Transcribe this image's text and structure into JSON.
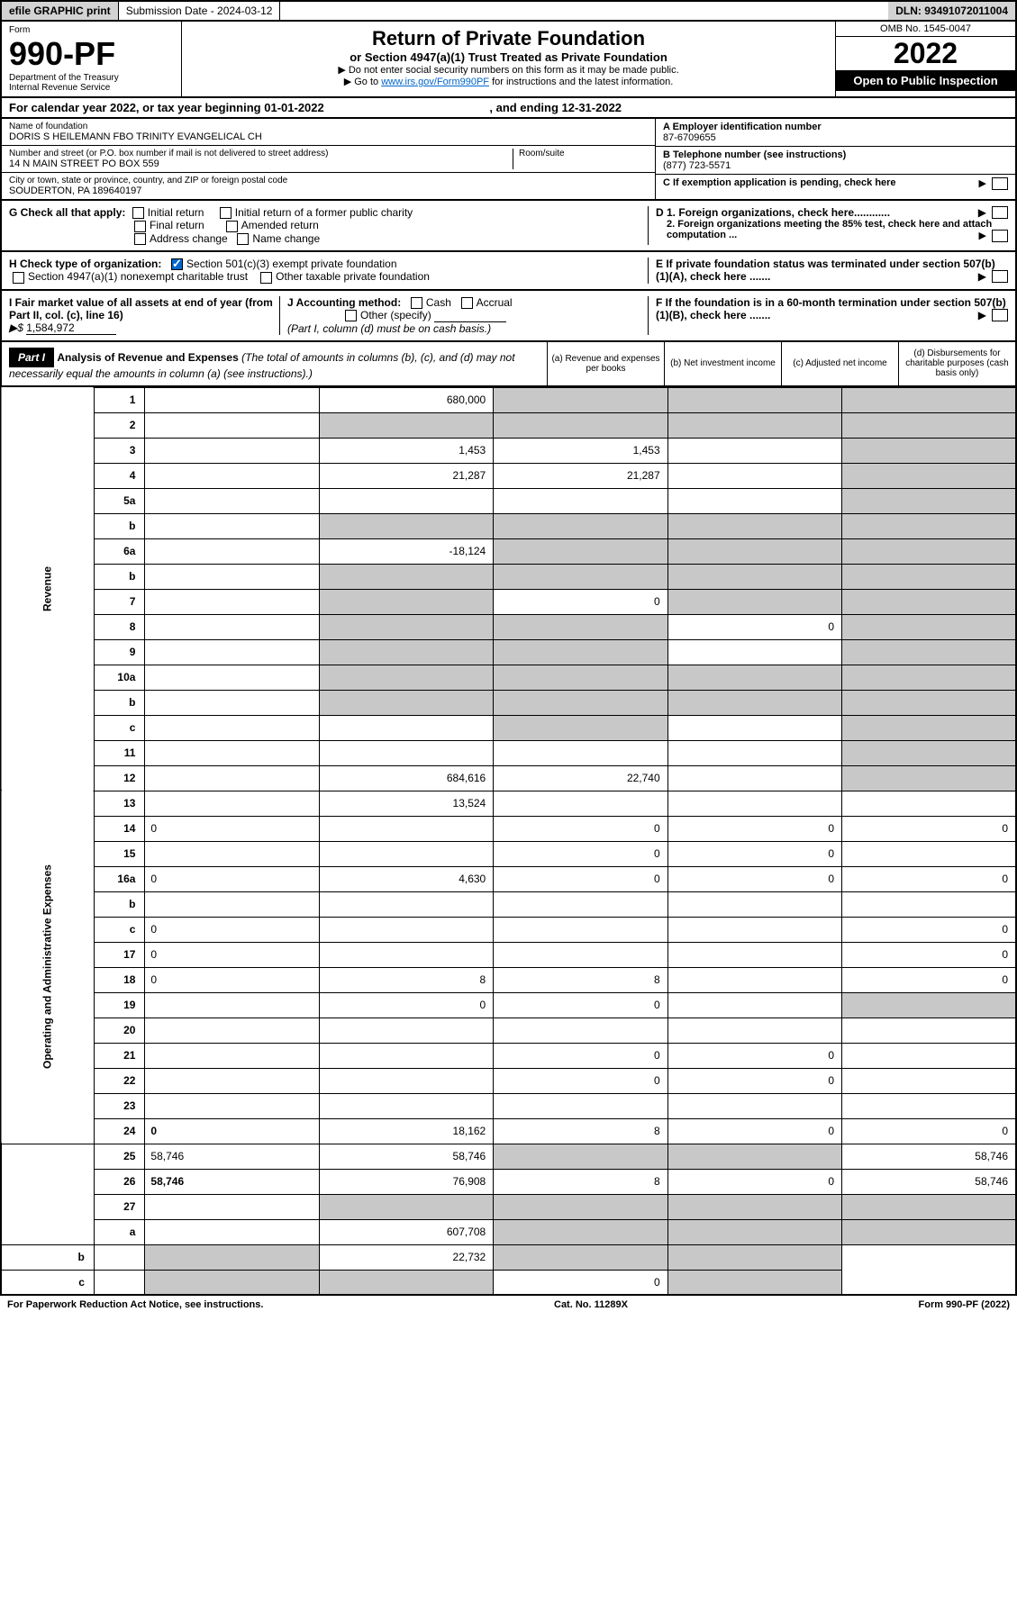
{
  "top_bar": {
    "efile": "efile GRAPHIC print",
    "sub_label": "Submission Date - 2024-03-12",
    "dln": "DLN: 93491072011004"
  },
  "header": {
    "form_label": "Form",
    "form_number": "990-PF",
    "dept": "Department of the Treasury",
    "irs": "Internal Revenue Service",
    "title": "Return of Private Foundation",
    "subtitle": "or Section 4947(a)(1) Trust Treated as Private Foundation",
    "instr1": "▶ Do not enter social security numbers on this form as it may be made public.",
    "instr2_pre": "▶ Go to ",
    "instr2_link": "www.irs.gov/Form990PF",
    "instr2_post": " for instructions and the latest information.",
    "omb": "OMB No. 1545-0047",
    "year": "2022",
    "open": "Open to Public Inspection"
  },
  "calendar": {
    "text_pre": "For calendar year 2022, or tax year beginning ",
    "begin": "01-01-2022",
    "mid": " , and ending ",
    "end": "12-31-2022"
  },
  "entity": {
    "name_label": "Name of foundation",
    "name": "DORIS S HEILEMANN FBO TRINITY EVANGELICAL CH",
    "addr_label": "Number and street (or P.O. box number if mail is not delivered to street address)",
    "addr": "14 N MAIN STREET PO BOX 559",
    "room_label": "Room/suite",
    "city_label": "City or town, state or province, country, and ZIP or foreign postal code",
    "city": "SOUDERTON, PA  189640197",
    "ein_label": "A Employer identification number",
    "ein": "87-6709655",
    "phone_label": "B Telephone number (see instructions)",
    "phone": "(877) 723-5571",
    "c_label": "C If exemption application is pending, check here"
  },
  "checks": {
    "g_label": "G Check all that apply:",
    "initial": "Initial return",
    "initial_former": "Initial return of a former public charity",
    "final": "Final return",
    "amended": "Amended return",
    "addr_change": "Address change",
    "name_change": "Name change",
    "h_label": "H Check type of organization:",
    "h_501c3": "Section 501(c)(3) exempt private foundation",
    "h_4947": "Section 4947(a)(1) nonexempt charitable trust",
    "h_other": "Other taxable private foundation",
    "i_label": "I Fair market value of all assets at end of year (from Part II, col. (c), line 16)",
    "i_arrow": "▶$",
    "i_value": "1,584,972",
    "j_label": "J Accounting method:",
    "j_cash": "Cash",
    "j_accrual": "Accrual",
    "j_other": "Other (specify)",
    "j_note": "(Part I, column (d) must be on cash basis.)",
    "d1": "D 1. Foreign organizations, check here............",
    "d2": "2. Foreign organizations meeting the 85% test, check here and attach computation ...",
    "e": "E  If private foundation status was terminated under section 507(b)(1)(A), check here .......",
    "f": "F  If the foundation is in a 60-month termination under section 507(b)(1)(B), check here .......",
    "arrow": "▶"
  },
  "part1": {
    "label": "Part I",
    "title": "Analysis of Revenue and Expenses",
    "note": " (The total of amounts in columns (b), (c), and (d) may not necessarily equal the amounts in column (a) (see instructions).)",
    "col_a": "(a) Revenue and expenses per books",
    "col_b": "(b) Net investment income",
    "col_c": "(c) Adjusted net income",
    "col_d": "(d) Disbursements for charitable purposes (cash basis only)"
  },
  "side_labels": {
    "revenue": "Revenue",
    "opex": "Operating and Administrative Expenses"
  },
  "rows": [
    {
      "n": "1",
      "d": "",
      "a": "680,000",
      "b": "",
      "c": "",
      "bg": true,
      "cg": true,
      "dg": true
    },
    {
      "n": "2",
      "d": "",
      "a": "",
      "b": "",
      "c": "",
      "ag": true,
      "bg": true,
      "cg": true,
      "dg": true
    },
    {
      "n": "3",
      "d": "",
      "a": "1,453",
      "b": "1,453",
      "c": "",
      "dg": true
    },
    {
      "n": "4",
      "d": "",
      "a": "21,287",
      "b": "21,287",
      "c": "",
      "dg": true
    },
    {
      "n": "5a",
      "d": "",
      "a": "",
      "b": "",
      "c": "",
      "dg": true
    },
    {
      "n": "b",
      "d": "",
      "a": "",
      "b": "",
      "c": "",
      "ag": true,
      "bg": true,
      "cg": true,
      "dg": true
    },
    {
      "n": "6a",
      "d": "",
      "a": "-18,124",
      "b": "",
      "c": "",
      "bg": true,
      "cg": true,
      "dg": true
    },
    {
      "n": "b",
      "d": "",
      "a": "",
      "b": "",
      "c": "",
      "ag": true,
      "bg": true,
      "cg": true,
      "dg": true
    },
    {
      "n": "7",
      "d": "",
      "a": "",
      "b": "0",
      "c": "",
      "ag": true,
      "cg": true,
      "dg": true
    },
    {
      "n": "8",
      "d": "",
      "a": "",
      "b": "",
      "c": "0",
      "ag": true,
      "bg": true,
      "dg": true
    },
    {
      "n": "9",
      "d": "",
      "a": "",
      "b": "",
      "c": "",
      "ag": true,
      "bg": true,
      "dg": true
    },
    {
      "n": "10a",
      "d": "",
      "a": "",
      "b": "",
      "c": "",
      "ag": true,
      "bg": true,
      "cg": true,
      "dg": true
    },
    {
      "n": "b",
      "d": "",
      "a": "",
      "b": "",
      "c": "",
      "ag": true,
      "bg": true,
      "cg": true,
      "dg": true
    },
    {
      "n": "c",
      "d": "",
      "a": "",
      "b": "",
      "c": "",
      "bg": true,
      "dg": true
    },
    {
      "n": "11",
      "d": "",
      "a": "",
      "b": "",
      "c": "",
      "dg": true
    },
    {
      "n": "12",
      "d": "",
      "a": "684,616",
      "b": "22,740",
      "c": "",
      "bold": true,
      "dg": true
    },
    {
      "n": "13",
      "d": "",
      "a": "13,524",
      "b": "",
      "c": ""
    },
    {
      "n": "14",
      "d": "0",
      "a": "",
      "b": "0",
      "c": "0"
    },
    {
      "n": "15",
      "d": "",
      "a": "",
      "b": "0",
      "c": "0"
    },
    {
      "n": "16a",
      "d": "0",
      "a": "4,630",
      "b": "0",
      "c": "0"
    },
    {
      "n": "b",
      "d": "",
      "a": "",
      "b": "",
      "c": ""
    },
    {
      "n": "c",
      "d": "0",
      "a": "",
      "b": "",
      "c": ""
    },
    {
      "n": "17",
      "d": "0",
      "a": "",
      "b": "",
      "c": ""
    },
    {
      "n": "18",
      "d": "0",
      "a": "8",
      "b": "8",
      "c": ""
    },
    {
      "n": "19",
      "d": "",
      "a": "0",
      "b": "0",
      "c": "",
      "dg": true
    },
    {
      "n": "20",
      "d": "",
      "a": "",
      "b": "",
      "c": ""
    },
    {
      "n": "21",
      "d": "",
      "a": "",
      "b": "0",
      "c": "0"
    },
    {
      "n": "22",
      "d": "",
      "a": "",
      "b": "0",
      "c": "0"
    },
    {
      "n": "23",
      "d": "",
      "a": "",
      "b": "",
      "c": ""
    },
    {
      "n": "24",
      "d": "0",
      "a": "18,162",
      "b": "8",
      "c": "0",
      "bold": true
    },
    {
      "n": "25",
      "d": "58,746",
      "a": "58,746",
      "b": "",
      "c": "",
      "bg": true,
      "cg": true
    },
    {
      "n": "26",
      "d": "58,746",
      "a": "76,908",
      "b": "8",
      "c": "0",
      "bold": true
    },
    {
      "n": "27",
      "d": "",
      "a": "",
      "b": "",
      "c": "",
      "ag": true,
      "bg": true,
      "cg": true,
      "dg": true
    },
    {
      "n": "a",
      "d": "",
      "a": "607,708",
      "b": "",
      "c": "",
      "bold": true,
      "bg": true,
      "cg": true,
      "dg": true
    },
    {
      "n": "b",
      "d": "",
      "a": "",
      "b": "22,732",
      "c": "",
      "bold": true,
      "ag": true,
      "cg": true,
      "dg": true
    },
    {
      "n": "c",
      "d": "",
      "a": "",
      "b": "",
      "c": "0",
      "bold": true,
      "ag": true,
      "bg": true,
      "dg": true
    }
  ],
  "footer": {
    "left": "For Paperwork Reduction Act Notice, see instructions.",
    "mid": "Cat. No. 11289X",
    "right": "Form 990-PF (2022)"
  },
  "colors": {
    "grey": "#c8c8c8",
    "topbar": "#d3d3d3",
    "link": "#0066cc",
    "black": "#000000"
  }
}
